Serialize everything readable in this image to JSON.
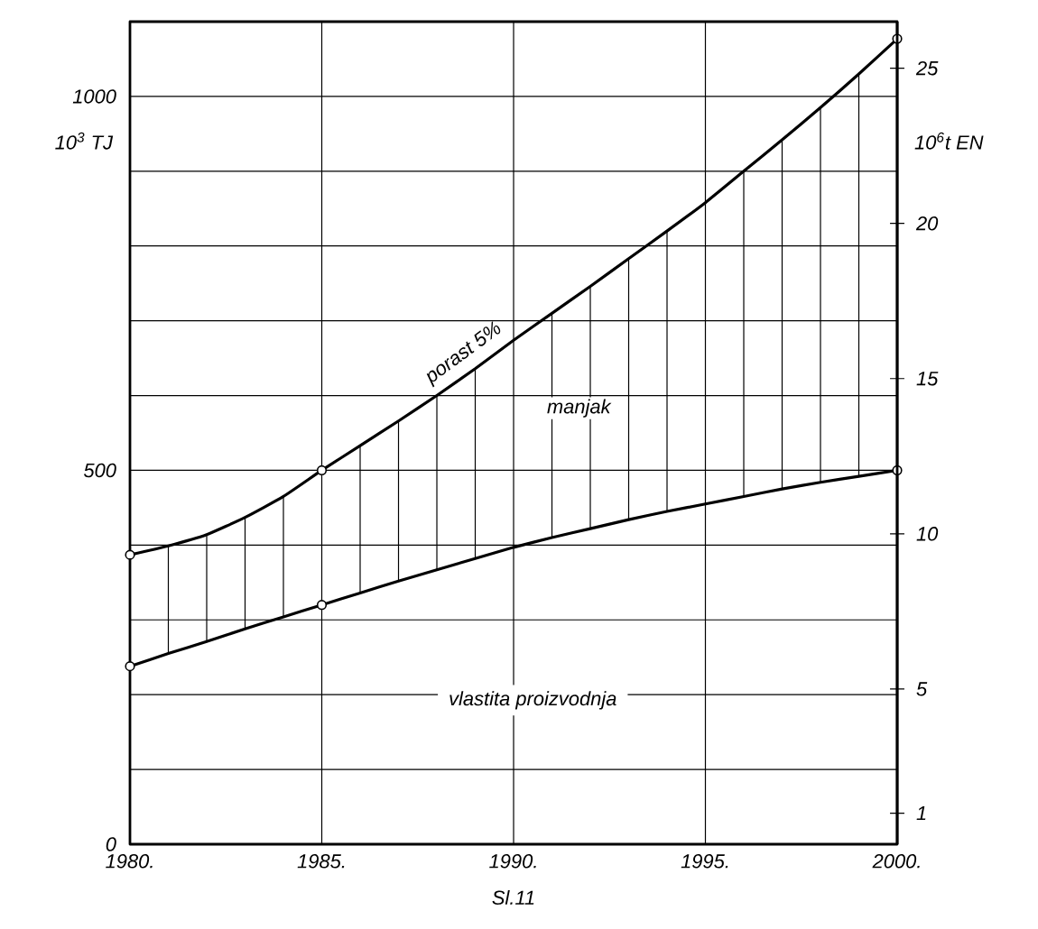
{
  "chart_data": {
    "type": "line",
    "x": [
      1980,
      1981,
      1982,
      1983,
      1984,
      1985,
      1986,
      1987,
      1988,
      1989,
      1990,
      1991,
      1992,
      1993,
      1994,
      1995,
      1996,
      1997,
      1998,
      1999,
      2000
    ],
    "series": [
      {
        "color": "#000000",
        "values": [
          387,
          399,
          414,
          437,
          465,
          500,
          533,
          566,
          600,
          636,
          674,
          710,
          746,
          783,
          820,
          858,
          900,
          942,
          985,
          1030,
          1077
        ],
        "errors": [
          null,
          [
            255,
            399
          ],
          [
            271,
            414
          ],
          [
            288,
            437
          ],
          [
            304,
            465
          ],
          null,
          [
            336,
            533
          ],
          [
            352,
            566
          ],
          [
            367,
            600
          ],
          [
            382,
            636
          ],
          null,
          [
            410,
            710
          ],
          [
            422,
            746
          ],
          [
            434,
            783
          ],
          [
            445,
            820
          ],
          null,
          [
            465,
            900
          ],
          [
            475,
            942
          ],
          [
            484,
            985
          ],
          [
            492,
            1030
          ],
          null
        ]
      },
      {
        "color": "#000000",
        "values": [
          238,
          255,
          271,
          288,
          304,
          320,
          336,
          352,
          367,
          382,
          397,
          410,
          422,
          434,
          445,
          455,
          465,
          475,
          484,
          492,
          500
        ]
      },
      {
        "type": "scatter",
        "color": "#000000",
        "x": [
          1980,
          1985,
          2000
        ],
        "values": [
          387,
          500,
          1077
        ]
      },
      {
        "type": "scatter",
        "color": "#000000",
        "x": [
          1980,
          1985,
          2000
        ],
        "values": [
          238,
          320,
          500
        ]
      }
    ],
    "xlim": [
      1980,
      2000
    ],
    "xticks": [
      {
        "value": 1980,
        "label": "1980."
      },
      {
        "value": 1985,
        "label": "1985."
      },
      {
        "value": 1990,
        "label": "1990."
      },
      {
        "value": 1995,
        "label": "1995."
      },
      {
        "value": 2000,
        "label": "2000."
      }
    ],
    "ylim": [
      0,
      1100
    ],
    "yticks": [
      0,
      {
        "value": 100,
        "label": null
      },
      {
        "value": 200,
        "label": null
      },
      {
        "value": 300,
        "label": null
      },
      {
        "value": 400,
        "label": null
      },
      500,
      {
        "value": 600,
        "label": null
      },
      {
        "value": 700,
        "label": null
      },
      {
        "value": 800,
        "label": null
      },
      {
        "value": 900,
        "label": null
      },
      1000
    ],
    "y2lim": [
      0,
      26.5
    ],
    "y2ticks": [
      1,
      5,
      10,
      15,
      20,
      25
    ],
    "ylabel": "10$^{3}$ TJ",
    "y2label": "10$^{6}$t EN",
    "grid": true,
    "annotations": [
      {
        "text": "porast 5%",
        "x": 1989,
        "y": 636
      },
      "manjak",
      "vlastita proizvodnja",
      "Sl.11"
    ]
  }
}
